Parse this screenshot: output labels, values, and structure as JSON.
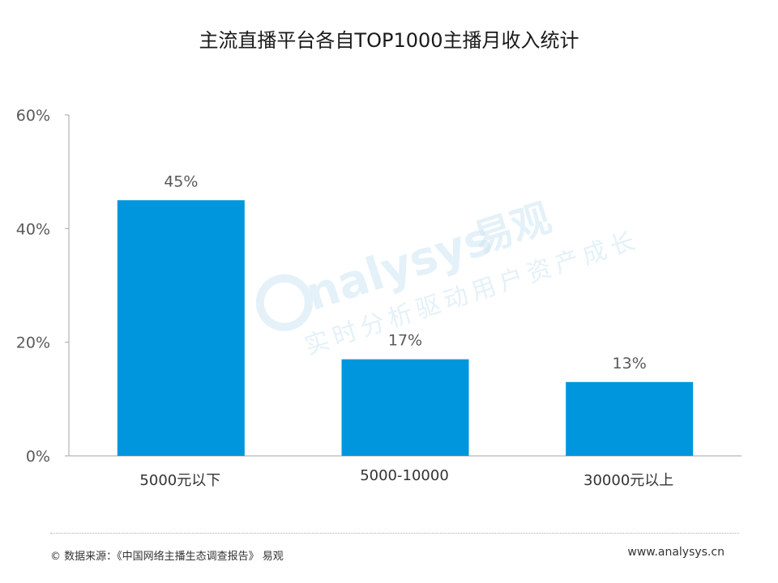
{
  "chart_data": {
    "type": "bar",
    "title": "主流直播平台各自TOP1000主播月收入统计",
    "categories": [
      "5000元以下",
      "5000-10000",
      "30000元以上"
    ],
    "values": [
      45,
      17,
      13
    ],
    "value_labels": [
      "45%",
      "17%",
      "13%"
    ],
    "yticks": [
      "0%",
      "20%",
      "40%",
      "60%"
    ],
    "ylim": [
      0,
      60
    ],
    "xlabel": "",
    "ylabel": "",
    "grid": false,
    "bar_color": "#0096dd"
  },
  "watermark": {
    "brand": "nalysys",
    "brand_cn": "易观",
    "slogan": "实时分析驱动用户资产成长"
  },
  "footer": {
    "source": "© 数据来源：《中国网络主播生态调查报告》 易观",
    "website": "www.analysys.cn"
  }
}
